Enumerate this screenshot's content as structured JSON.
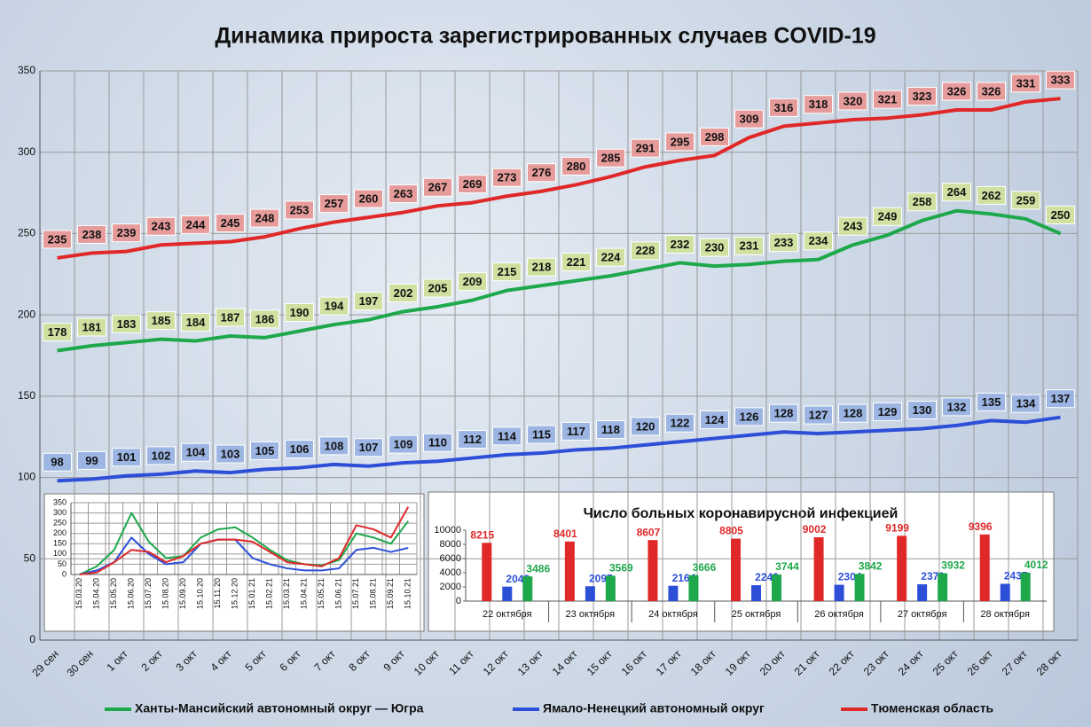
{
  "chart_data": [
    {
      "type": "line",
      "title": "Динамика прироста зарегистрированных случаев COVID-19",
      "categories": [
        "29 сен",
        "30 сен",
        "1 окт",
        "2 окт",
        "3 окт",
        "4 окт",
        "5 окт",
        "6 окт",
        "7 окт",
        "8 окт",
        "9 окт",
        "10 окт",
        "11 окт",
        "12 окт",
        "13 окт",
        "14 окт",
        "15 окт",
        "16 окт",
        "17 окт",
        "18 окт",
        "19 окт",
        "20 окт",
        "21 окт",
        "22 окт",
        "23 окт",
        "24 окт",
        "25 окт",
        "26 окт",
        "27 окт",
        "28 окт"
      ],
      "series": [
        {
          "name": "Ханты-Мансийский автономный округ — Югра",
          "color": "#1ea84c",
          "values": [
            178,
            181,
            183,
            185,
            184,
            187,
            186,
            190,
            194,
            197,
            202,
            205,
            209,
            215,
            218,
            221,
            224,
            228,
            232,
            230,
            231,
            233,
            234,
            243,
            249,
            258,
            264,
            262,
            259,
            250
          ]
        },
        {
          "name": "Ямало-Ненецкий автономный округ",
          "color": "#2d4fd8",
          "values": [
            98,
            99,
            101,
            102,
            104,
            103,
            105,
            106,
            108,
            107,
            109,
            110,
            112,
            114,
            115,
            117,
            118,
            120,
            122,
            124,
            126,
            128,
            127,
            128,
            129,
            130,
            132,
            135,
            134,
            137
          ]
        },
        {
          "name": "Тюменская область",
          "color": "#e02828",
          "values": [
            235,
            238,
            239,
            243,
            244,
            245,
            248,
            253,
            257,
            260,
            263,
            267,
            269,
            273,
            276,
            280,
            285,
            291,
            295,
            298,
            309,
            316,
            318,
            320,
            321,
            323,
            326,
            326,
            331,
            333
          ]
        }
      ],
      "ylim": [
        0,
        350
      ],
      "yticks": [
        0,
        50,
        100,
        150,
        200,
        250,
        300,
        350
      ],
      "grid": true,
      "data_labels": true
    },
    {
      "type": "line",
      "categories": [
        "15.03.20",
        "15.04.20",
        "15.05.20",
        "15.06.20",
        "15.07.20",
        "15.08.20",
        "15.09.20",
        "15.10.20",
        "15.11.20",
        "15.12.20",
        "15.01.21",
        "15.02.21",
        "15.03.21",
        "15.04.21",
        "15.05.21",
        "15.06.21",
        "15.07.21",
        "15.08.21",
        "15.09.21",
        "15.10.21"
      ],
      "series": [
        {
          "color": "#1ea84c",
          "values": [
            0,
            40,
            120,
            300,
            160,
            80,
            90,
            180,
            220,
            230,
            180,
            120,
            70,
            50,
            45,
            70,
            200,
            180,
            150,
            260
          ]
        },
        {
          "color": "#2d4fd8",
          "values": [
            0,
            20,
            60,
            180,
            100,
            50,
            60,
            150,
            170,
            170,
            80,
            50,
            30,
            20,
            20,
            30,
            120,
            130,
            110,
            130
          ]
        },
        {
          "color": "#e02828",
          "values": [
            0,
            10,
            60,
            120,
            110,
            60,
            90,
            150,
            170,
            170,
            160,
            110,
            60,
            50,
            40,
            80,
            240,
            220,
            180,
            330
          ]
        }
      ],
      "ylim": [
        0,
        350
      ],
      "yticks": [
        0,
        50,
        100,
        150,
        200,
        250,
        300,
        350
      ],
      "grid": true
    },
    {
      "type": "bar",
      "title": "Число больных коронавирусной  инфекцией",
      "categories": [
        "22 октября",
        "23 октября",
        "24 октября",
        "25 октября",
        "26 октября",
        "27 октября",
        "28 октября"
      ],
      "series": [
        {
          "color": "#e02828",
          "values": [
            8215,
            8401,
            8607,
            8805,
            9002,
            9199,
            9396
          ]
        },
        {
          "color": "#2d4fd8",
          "values": [
            2042,
            2097,
            2164,
            2243,
            2304,
            2370,
            2437
          ]
        },
        {
          "color": "#1ea84c",
          "values": [
            3486,
            3569,
            3666,
            3744,
            3842,
            3932,
            4012
          ]
        }
      ],
      "ylim": [
        0,
        10000
      ],
      "yticks": [
        0,
        2000,
        4000,
        6000,
        8000,
        10000
      ],
      "grid": false,
      "data_labels": true
    }
  ]
}
